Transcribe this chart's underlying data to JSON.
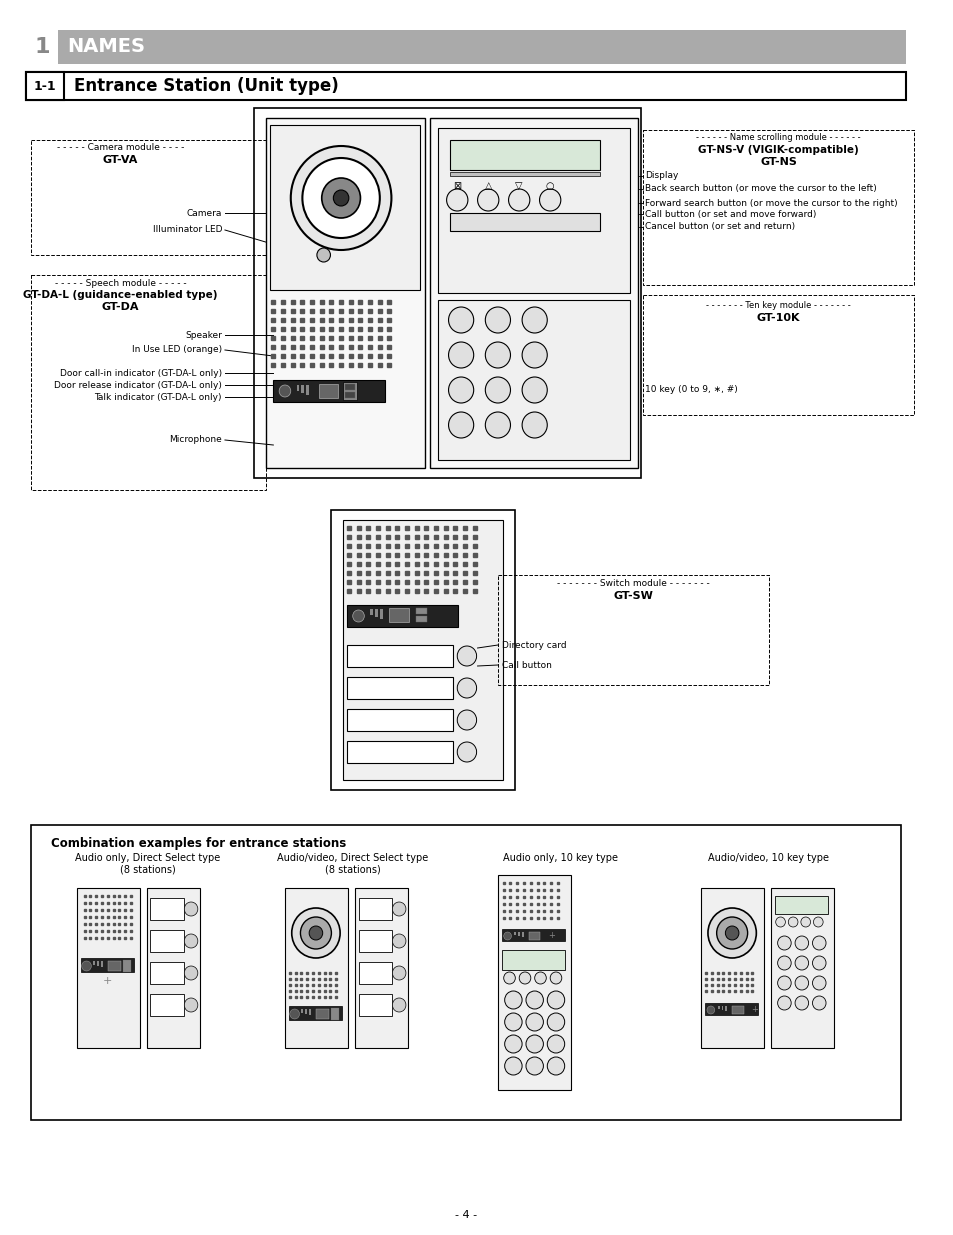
{
  "page_bg": "#ffffff",
  "header1_bg": "#aaaaaa",
  "header1_text": "NAMES",
  "header2_text": "Entrance Station (Unit type)",
  "header2_num": "1-1",
  "page_number": "- 4 -",
  "combo_title": "Combination examples for entrance stations",
  "combo_labels": [
    [
      "Audio only, Direct Select type",
      "(8 stations)"
    ],
    [
      "Audio/video, Direct Select type",
      "(8 stations)"
    ],
    [
      "Audio only, 10 key type",
      ""
    ],
    [
      "Audio/video, 10 key type",
      ""
    ]
  ]
}
